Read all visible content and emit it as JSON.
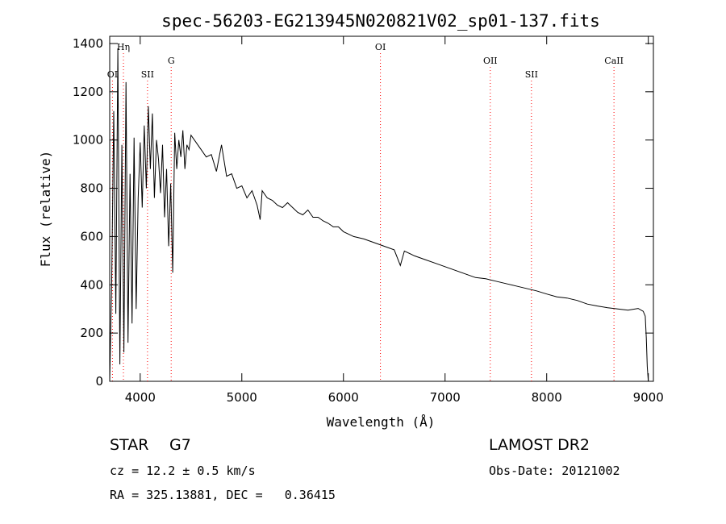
{
  "chart_data": {
    "type": "line",
    "title": "spec-56203-EG213945N020821V02_sp01-137.fits",
    "xlabel": "Wavelength (Å)",
    "ylabel": "Flux (relative)",
    "xlim": [
      3700,
      9050
    ],
    "ylim": [
      0,
      1430
    ],
    "x_ticks": [
      4000,
      5000,
      6000,
      7000,
      8000,
      9000
    ],
    "y_ticks": [
      0,
      200,
      400,
      600,
      800,
      1000,
      1200,
      1400
    ],
    "grid": false,
    "line_color": "#000000",
    "marker_color": "#ff0000",
    "spectral_lines": [
      {
        "label": "OI",
        "wavelength": 3727,
        "level": "low"
      },
      {
        "label": "Hη",
        "wavelength": 3835,
        "level": "high"
      },
      {
        "label": "SII",
        "wavelength": 4072,
        "level": "low"
      },
      {
        "label": "G",
        "wavelength": 4305,
        "level": "mid"
      },
      {
        "label": "OI",
        "wavelength": 6364,
        "level": "high"
      },
      {
        "label": "OII",
        "wavelength": 7445,
        "level": "mid"
      },
      {
        "label": "SII",
        "wavelength": 7850,
        "level": "low"
      },
      {
        "label": "CaII",
        "wavelength": 8662,
        "level": "mid"
      }
    ],
    "series": [
      {
        "x": [
          3700,
          3720,
          3740,
          3760,
          3780,
          3800,
          3820,
          3840,
          3860,
          3880,
          3900,
          3920,
          3940,
          3960,
          3980,
          4000,
          4020,
          4040,
          4060,
          4080,
          4100,
          4120,
          4140,
          4160,
          4180,
          4200,
          4220,
          4240,
          4260,
          4280,
          4300,
          4320,
          4340,
          4360,
          4380,
          4400,
          4420,
          4440,
          4460,
          4480,
          4500,
          4550,
          4600,
          4650,
          4700,
          4750,
          4800,
          4850,
          4900,
          4950,
          5000,
          5050,
          5100,
          5150,
          5180,
          5200,
          5250,
          5300,
          5350,
          5400,
          5450,
          5500,
          5550,
          5600,
          5650,
          5700,
          5750,
          5800,
          5850,
          5900,
          5950,
          6000,
          6100,
          6200,
          6300,
          6400,
          6500,
          6560,
          6600,
          6700,
          6800,
          6900,
          7000,
          7100,
          7200,
          7300,
          7400,
          7500,
          7600,
          7700,
          7800,
          7900,
          8000,
          8100,
          8200,
          8300,
          8400,
          8500,
          8600,
          8700,
          8800,
          8900,
          8950,
          8970,
          8980,
          8990,
          9000
        ],
        "y": [
          0,
          420,
          1120,
          280,
          1380,
          70,
          980,
          120,
          1240,
          160,
          860,
          240,
          1010,
          300,
          760,
          990,
          720,
          1060,
          800,
          1140,
          880,
          1110,
          760,
          1000,
          920,
          780,
          980,
          680,
          880,
          560,
          820,
          450,
          1030,
          880,
          1000,
          930,
          1040,
          880,
          980,
          960,
          1020,
          990,
          960,
          930,
          940,
          870,
          980,
          850,
          860,
          800,
          810,
          760,
          790,
          730,
          670,
          790,
          760,
          750,
          730,
          720,
          740,
          720,
          700,
          690,
          710,
          680,
          680,
          665,
          655,
          640,
          640,
          620,
          600,
          590,
          575,
          560,
          545,
          480,
          540,
          520,
          505,
          490,
          475,
          460,
          445,
          430,
          425,
          415,
          405,
          395,
          385,
          375,
          362,
          350,
          345,
          335,
          320,
          312,
          305,
          300,
          295,
          302,
          290,
          270,
          180,
          60,
          0
        ]
      }
    ]
  },
  "info": {
    "object_class": "STAR",
    "subclass": "G7",
    "survey": "LAMOST DR2",
    "velocity": "cz = 12.2 ± 0.5 km/s",
    "obs_date": "Obs-Date: 20121002",
    "coords": "RA = 325.13881, DEC =   0.36415"
  }
}
